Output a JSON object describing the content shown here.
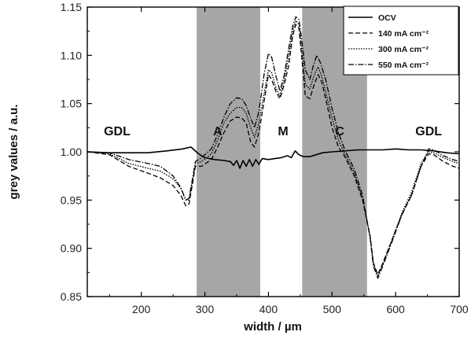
{
  "chart_data": {
    "type": "line",
    "xlabel": "width / µm",
    "ylabel": "grey values / a.u.",
    "xlim": [
      115,
      700
    ],
    "ylim": [
      0.85,
      1.15
    ],
    "x_ticks": [
      200,
      300,
      400,
      500,
      600,
      700
    ],
    "y_ticks": [
      0.85,
      0.9,
      0.95,
      1.0,
      1.05,
      1.1,
      1.15
    ],
    "y_tick_labels": [
      "0.85",
      "0.90",
      "0.95",
      "1.00",
      "1.05",
      "1.10",
      "1.15"
    ],
    "shaded_regions": [
      {
        "x0": 287,
        "x1": 387,
        "color": "#a6a6a6"
      },
      {
        "x0": 453,
        "x1": 555,
        "color": "#a6a6a6"
      }
    ],
    "region_labels": [
      {
        "text": "GDL",
        "x": 162,
        "y": 1.017
      },
      {
        "text": "A",
        "x": 320,
        "y": 1.017
      },
      {
        "text": "M",
        "x": 423,
        "y": 1.017
      },
      {
        "text": "C",
        "x": 512,
        "y": 1.017
      },
      {
        "text": "GDL",
        "x": 652,
        "y": 1.017
      }
    ],
    "legend_position": "top-right",
    "series": [
      {
        "name": "OCV",
        "dash": "solid",
        "color": "#000000",
        "points": [
          [
            115,
            1.0
          ],
          [
            150,
            0.999
          ],
          [
            180,
            0.999
          ],
          [
            210,
            0.999
          ],
          [
            240,
            1.001
          ],
          [
            265,
            1.003
          ],
          [
            278,
            1.005
          ],
          [
            290,
            0.998
          ],
          [
            300,
            0.994
          ],
          [
            315,
            0.992
          ],
          [
            330,
            0.991
          ],
          [
            340,
            0.99
          ],
          [
            345,
            0.986
          ],
          [
            350,
            0.991
          ],
          [
            355,
            0.983
          ],
          [
            360,
            0.991
          ],
          [
            365,
            0.985
          ],
          [
            370,
            0.992
          ],
          [
            375,
            0.985
          ],
          [
            380,
            0.992
          ],
          [
            385,
            0.987
          ],
          [
            390,
            0.993
          ],
          [
            400,
            0.992
          ],
          [
            410,
            0.993
          ],
          [
            420,
            0.994
          ],
          [
            430,
            0.996
          ],
          [
            436,
            0.994
          ],
          [
            442,
            1.001
          ],
          [
            448,
            0.997
          ],
          [
            455,
            0.995
          ],
          [
            465,
            0.995
          ],
          [
            475,
            0.997
          ],
          [
            485,
            0.999
          ],
          [
            500,
            1.0
          ],
          [
            520,
            1.001
          ],
          [
            540,
            1.002
          ],
          [
            560,
            1.002
          ],
          [
            580,
            1.002
          ],
          [
            600,
            1.003
          ],
          [
            620,
            1.002
          ],
          [
            640,
            1.002
          ],
          [
            660,
            1.001
          ],
          [
            680,
            0.999
          ],
          [
            700,
            0.998
          ]
        ]
      },
      {
        "name": "140 mA cm⁻²",
        "dash": "6,3",
        "color": "#000000",
        "points": [
          [
            115,
            1.0
          ],
          [
            150,
            0.997
          ],
          [
            180,
            0.985
          ],
          [
            210,
            0.978
          ],
          [
            230,
            0.973
          ],
          [
            250,
            0.965
          ],
          [
            262,
            0.955
          ],
          [
            270,
            0.944
          ],
          [
            275,
            0.946
          ],
          [
            280,
            0.965
          ],
          [
            285,
            0.985
          ],
          [
            295,
            0.985
          ],
          [
            310,
            0.992
          ],
          [
            320,
            1.005
          ],
          [
            330,
            1.02
          ],
          [
            340,
            1.032
          ],
          [
            350,
            1.036
          ],
          [
            358,
            1.035
          ],
          [
            365,
            1.03
          ],
          [
            372,
            1.01
          ],
          [
            378,
            1.005
          ],
          [
            385,
            1.02
          ],
          [
            395,
            1.06
          ],
          [
            400,
            1.08
          ],
          [
            405,
            1.075
          ],
          [
            412,
            1.062
          ],
          [
            418,
            1.055
          ],
          [
            425,
            1.07
          ],
          [
            432,
            1.09
          ],
          [
            438,
            1.12
          ],
          [
            443,
            1.132
          ],
          [
            448,
            1.128
          ],
          [
            452,
            1.1
          ],
          [
            458,
            1.058
          ],
          [
            465,
            1.055
          ],
          [
            472,
            1.07
          ],
          [
            478,
            1.08
          ],
          [
            484,
            1.072
          ],
          [
            490,
            1.055
          ],
          [
            500,
            1.025
          ],
          [
            510,
            1.005
          ],
          [
            520,
            0.995
          ],
          [
            535,
            0.975
          ],
          [
            548,
            0.95
          ],
          [
            560,
            0.912
          ],
          [
            565,
            0.885
          ],
          [
            572,
            0.873
          ],
          [
            580,
            0.885
          ],
          [
            595,
            0.91
          ],
          [
            610,
            0.935
          ],
          [
            625,
            0.955
          ],
          [
            640,
            0.985
          ],
          [
            652,
            0.998
          ],
          [
            660,
            0.997
          ],
          [
            675,
            0.99
          ],
          [
            690,
            0.985
          ],
          [
            700,
            0.983
          ]
        ]
      },
      {
        "name": "300 mA cm⁻²",
        "dash": "1.6,1.6",
        "color": "#000000",
        "points": [
          [
            115,
            1.0
          ],
          [
            150,
            0.998
          ],
          [
            180,
            0.988
          ],
          [
            210,
            0.983
          ],
          [
            230,
            0.98
          ],
          [
            250,
            0.972
          ],
          [
            262,
            0.962
          ],
          [
            270,
            0.95
          ],
          [
            275,
            0.95
          ],
          [
            280,
            0.968
          ],
          [
            285,
            0.988
          ],
          [
            295,
            0.99
          ],
          [
            310,
            0.998
          ],
          [
            320,
            1.012
          ],
          [
            330,
            1.03
          ],
          [
            340,
            1.04
          ],
          [
            350,
            1.046
          ],
          [
            358,
            1.046
          ],
          [
            365,
            1.04
          ],
          [
            372,
            1.025
          ],
          [
            378,
            1.015
          ],
          [
            385,
            1.03
          ],
          [
            393,
            1.06
          ],
          [
            400,
            1.085
          ],
          [
            405,
            1.082
          ],
          [
            412,
            1.066
          ],
          [
            418,
            1.058
          ],
          [
            425,
            1.075
          ],
          [
            432,
            1.1
          ],
          [
            438,
            1.125
          ],
          [
            443,
            1.136
          ],
          [
            448,
            1.132
          ],
          [
            452,
            1.108
          ],
          [
            458,
            1.07
          ],
          [
            465,
            1.065
          ],
          [
            472,
            1.08
          ],
          [
            478,
            1.088
          ],
          [
            484,
            1.078
          ],
          [
            490,
            1.062
          ],
          [
            500,
            1.035
          ],
          [
            510,
            1.012
          ],
          [
            520,
            0.998
          ],
          [
            535,
            0.978
          ],
          [
            548,
            0.952
          ],
          [
            560,
            0.912
          ],
          [
            565,
            0.885
          ],
          [
            572,
            0.871
          ],
          [
            580,
            0.884
          ],
          [
            595,
            0.91
          ],
          [
            610,
            0.937
          ],
          [
            625,
            0.958
          ],
          [
            640,
            0.988
          ],
          [
            652,
            1.0
          ],
          [
            660,
            0.999
          ],
          [
            675,
            0.994
          ],
          [
            690,
            0.99
          ],
          [
            700,
            0.988
          ]
        ]
      },
      {
        "name": "550 mA cm⁻²",
        "dash": "7,2,1.5,2",
        "color": "#000000",
        "points": [
          [
            115,
            1.0
          ],
          [
            150,
            0.999
          ],
          [
            180,
            0.992
          ],
          [
            210,
            0.988
          ],
          [
            230,
            0.985
          ],
          [
            250,
            0.975
          ],
          [
            262,
            0.963
          ],
          [
            270,
            0.95
          ],
          [
            275,
            0.952
          ],
          [
            280,
            0.97
          ],
          [
            285,
            0.99
          ],
          [
            295,
            0.994
          ],
          [
            310,
            1.003
          ],
          [
            320,
            1.018
          ],
          [
            330,
            1.036
          ],
          [
            340,
            1.05
          ],
          [
            350,
            1.056
          ],
          [
            358,
            1.055
          ],
          [
            365,
            1.048
          ],
          [
            372,
            1.035
          ],
          [
            378,
            1.025
          ],
          [
            385,
            1.042
          ],
          [
            393,
            1.08
          ],
          [
            400,
            1.102
          ],
          [
            405,
            1.098
          ],
          [
            412,
            1.078
          ],
          [
            418,
            1.063
          ],
          [
            425,
            1.08
          ],
          [
            432,
            1.108
          ],
          [
            438,
            1.13
          ],
          [
            443,
            1.14
          ],
          [
            448,
            1.137
          ],
          [
            452,
            1.118
          ],
          [
            458,
            1.085
          ],
          [
            465,
            1.075
          ],
          [
            470,
            1.088
          ],
          [
            476,
            1.1
          ],
          [
            482,
            1.092
          ],
          [
            490,
            1.075
          ],
          [
            500,
            1.045
          ],
          [
            510,
            1.02
          ],
          [
            520,
            1.002
          ],
          [
            535,
            0.982
          ],
          [
            548,
            0.955
          ],
          [
            560,
            0.91
          ],
          [
            565,
            0.882
          ],
          [
            572,
            0.869
          ],
          [
            580,
            0.882
          ],
          [
            595,
            0.908
          ],
          [
            610,
            0.935
          ],
          [
            625,
            0.955
          ],
          [
            640,
            0.985
          ],
          [
            652,
            1.003
          ],
          [
            660,
            1.002
          ],
          [
            675,
            0.996
          ],
          [
            690,
            0.992
          ],
          [
            700,
            0.99
          ]
        ]
      }
    ]
  }
}
